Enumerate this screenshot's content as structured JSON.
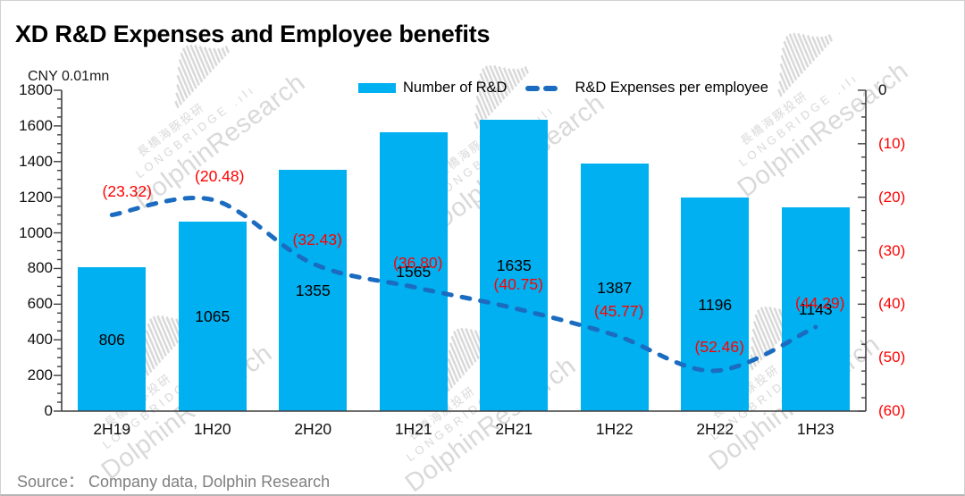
{
  "title": "XD R&D Expenses and Employee benefits",
  "unit_label": "CNY 0.01mn",
  "legend": {
    "bar_label": "Number of R&D",
    "line_label": "R&D Expenses per employee"
  },
  "source_note": "Source：  Company data, Dolphin Research",
  "watermark": {
    "cn_text": "長橋海豚投研",
    "brand_text": "LONGBRIDGE",
    "name_text": "DolphinResearch",
    "logo": "dolphin-bars-icon"
  },
  "colors": {
    "bar": "#00B0F0",
    "line": "#1B6CC0",
    "line_label": "#FF0000",
    "axis": "#3f3f3f",
    "tick_label": "#111111",
    "right_tick_negative": "#FF0000",
    "right_tick_zero": "#111111",
    "source": "#7f7f7f",
    "watermark": "#d9d9d9"
  },
  "chart_data": {
    "type": "bar",
    "combo": "bar + dashed line, dual axis",
    "title": "XD R&D Expenses and Employee benefits",
    "categories": [
      "2H19",
      "1H20",
      "2H20",
      "1H21",
      "2H21",
      "1H22",
      "2H22",
      "1H23"
    ],
    "series": [
      {
        "name": "Number of R&D",
        "type": "bar",
        "axis": "left",
        "values": [
          806,
          1065,
          1355,
          1565,
          1635,
          1387,
          1196,
          1143
        ],
        "labels": [
          "806",
          "1065",
          "1355",
          "1565",
          "1635",
          "1387",
          "1196",
          "1143"
        ]
      },
      {
        "name": "R&D Expenses per employee",
        "type": "line",
        "line_style": "dashed",
        "axis": "right",
        "values": [
          -23.32,
          -20.48,
          -32.43,
          -36.8,
          -40.75,
          -45.77,
          -52.46,
          -44.29
        ],
        "labels": [
          "(23.32)",
          "(20.48)",
          "(32.43)",
          "(36.80)",
          "(40.75)",
          "(45.77)",
          "(52.46)",
          "(44.29)"
        ]
      }
    ],
    "left_axis": {
      "title": "CNY 0.01mn",
      "min": 0,
      "max": 1800,
      "major_step": 200,
      "minor_step": 50,
      "tick_labels": [
        "0",
        "200",
        "400",
        "600",
        "800",
        "1000",
        "1200",
        "1400",
        "1600",
        "1800"
      ]
    },
    "right_axis": {
      "min": -60,
      "max": 0,
      "major_step": 10,
      "minor_step": 2.5,
      "tick_labels": [
        "0",
        "(10)",
        "(20)",
        "(30)",
        "(40)",
        "(50)",
        "(60)"
      ]
    },
    "gridlines": false,
    "legend_position": "top"
  }
}
